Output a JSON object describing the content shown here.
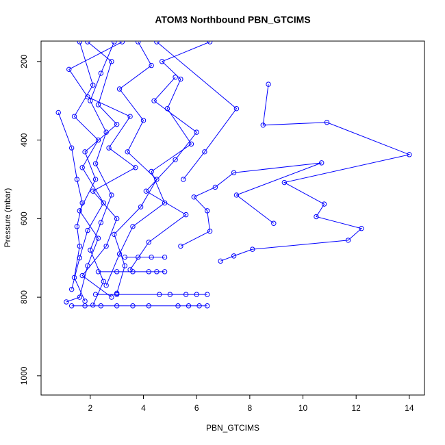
{
  "chart_data": {
    "type": "scatter",
    "lines": true,
    "invert_y": true,
    "title": "ATOM3 Northbound PBN_GTCIMS",
    "x_label": "PBN_GTCIMS",
    "y_label": "Pressure (mbar)",
    "xlim": [
      0.15,
      14.57
    ],
    "ylim": [
      148,
      1049
    ],
    "xticks": [
      2,
      4,
      6,
      8,
      10,
      12,
      14
    ],
    "yticks": [
      200,
      400,
      600,
      800,
      1000
    ],
    "series": [
      {
        "color": "#0000ff",
        "x": [
          8.7,
          8.5,
          10.9,
          14.0,
          9.3,
          10.8,
          10.5,
          12.2,
          11.7,
          8.1,
          7.4,
          6.9,
          null,
          8.9,
          7.5,
          10.7,
          7.4,
          6.7,
          5.9,
          6.4,
          6.5,
          5.4,
          null,
          1.3,
          1.8,
          2.4,
          3.0,
          3.6,
          4.2,
          5.3,
          5.7,
          6.1,
          6.4,
          null,
          2.2,
          3.0,
          4.6,
          5.0,
          5.6,
          6.0,
          6.4,
          null,
          2.3,
          3.0,
          3.6,
          4.2,
          4.5,
          4.8,
          null,
          3.3,
          3.8,
          4.3,
          4.8,
          null,
          0.8,
          1.3,
          1.5,
          1.7,
          1.5,
          1.6,
          1.4,
          1.8,
          null,
          2.9,
          2.4,
          2.0,
          2.6,
          2.2,
          2.8,
          2.4,
          2.0,
          2.5,
          2.1,
          null,
          3.2,
          1.2,
          1.9,
          3.5,
          2.7,
          3.7,
          2.1,
          3.0,
          2.6,
          1.7,
          2.8,
          null,
          6.5,
          4.7,
          5.4,
          4.9,
          5.8,
          4.3,
          4.8,
          3.6,
          3.1,
          2.6,
          null,
          3.8,
          4.3,
          3.1,
          4.0,
          3.4,
          4.5,
          3.9,
          2.9,
          3.3,
          3.0,
          null,
          1.6,
          2.1,
          1.4,
          2.3,
          1.7,
          2.5,
          1.9,
          1.6,
          1.3,
          null,
          5.2,
          4.4,
          6.0,
          5.2,
          4.1,
          5.6,
          4.2,
          3.5,
          null,
          4.5,
          7.5,
          6.3,
          5.5,
          null,
          1.9,
          2.8,
          2.3,
          3.0,
          1.8,
          2.2,
          1.6,
          2.3,
          1.9,
          1.6,
          1.1
        ],
        "values": [
          258,
          362,
          355,
          437,
          508,
          563,
          595,
          625,
          655,
          678,
          695,
          708,
          null,
          612,
          540,
          458,
          483,
          520,
          545,
          580,
          632,
          670,
          null,
          822,
          822,
          822,
          822,
          822,
          822,
          822,
          822,
          822,
          822,
          null,
          793,
          793,
          793,
          793,
          793,
          793,
          793,
          null,
          735,
          735,
          735,
          735,
          735,
          735,
          null,
          698,
          698,
          698,
          698,
          null,
          330,
          420,
          500,
          560,
          620,
          670,
          750,
          810,
          null,
          150,
          230,
          300,
          380,
          460,
          540,
          610,
          680,
          760,
          820,
          null,
          150,
          220,
          290,
          340,
          420,
          470,
          530,
          600,
          670,
          745,
          800,
          null,
          150,
          200,
          245,
          320,
          410,
          480,
          560,
          620,
          690,
          770,
          null,
          150,
          210,
          270,
          350,
          430,
          500,
          570,
          640,
          720,
          790,
          null,
          150,
          260,
          340,
          400,
          470,
          560,
          630,
          700,
          780,
          null,
          240,
          300,
          380,
          450,
          530,
          590,
          660,
          730,
          null,
          150,
          320,
          430,
          500,
          null,
          150,
          200,
          310,
          360,
          430,
          500,
          580,
          650,
          720,
          800,
          812
        ]
      }
    ]
  }
}
